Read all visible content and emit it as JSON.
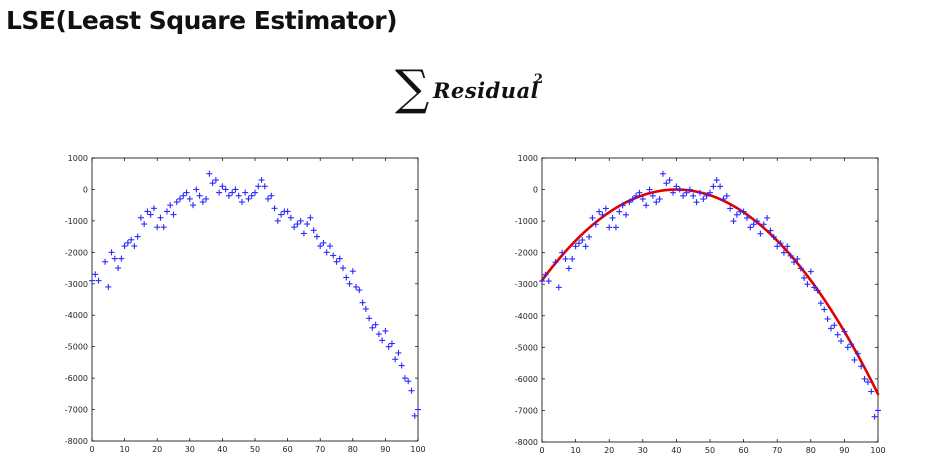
{
  "title": "LSE(Least Square Estimator)",
  "formula": {
    "sigma": "∑",
    "word": "Residual",
    "exponent": "2"
  },
  "colors": {
    "points": "#2a2aff",
    "fit_line": "#e00000",
    "axes": "#000000"
  },
  "chart_data": [
    {
      "type": "scatter",
      "title": "",
      "xlabel": "",
      "ylabel": "",
      "xlim": [
        0,
        100
      ],
      "ylim": [
        -8000,
        1000
      ],
      "xticks": [
        "0",
        "10",
        "20",
        "30",
        "40",
        "50",
        "60",
        "70",
        "80",
        "90",
        "100"
      ],
      "yticks": [
        "1000",
        "0",
        "-1000",
        "-2000",
        "-3000",
        "-4000",
        "-5000",
        "-6000",
        "-7000",
        "-8000"
      ],
      "grid": false,
      "marker": "+",
      "series": [
        {
          "x": [
            0,
            1,
            2,
            4,
            5,
            6,
            7,
            8,
            9,
            10,
            11,
            12,
            13,
            14,
            15,
            16,
            17,
            18,
            19,
            20,
            21,
            22,
            23,
            24,
            25,
            26,
            27,
            28,
            29,
            30,
            31,
            32,
            33,
            34,
            35,
            36,
            37,
            38,
            39,
            40,
            41,
            42,
            43,
            44,
            45,
            46,
            47,
            48,
            49,
            50,
            51,
            52,
            53,
            54,
            55,
            56,
            57,
            58,
            59,
            60,
            61,
            62,
            63,
            64,
            65,
            66,
            67,
            68,
            69,
            70,
            71,
            72,
            73,
            74,
            75,
            76,
            77,
            78,
            79,
            80,
            81,
            82,
            83,
            84,
            85,
            86,
            87,
            88,
            89,
            90,
            91,
            92,
            93,
            94,
            95,
            96,
            97,
            98,
            99,
            100
          ],
          "y": [
            -2900,
            -2700,
            -2900,
            -2300,
            -3100,
            -2000,
            -2200,
            -2500,
            -2200,
            -1800,
            -1700,
            -1600,
            -1800,
            -1500,
            -900,
            -1100,
            -700,
            -800,
            -600,
            -1200,
            -900,
            -1200,
            -700,
            -500,
            -800,
            -400,
            -300,
            -200,
            -100,
            -300,
            -500,
            0,
            -200,
            -400,
            -300,
            500,
            200,
            300,
            -100,
            100,
            0,
            -200,
            -100,
            0,
            -200,
            -400,
            -100,
            -300,
            -200,
            -100,
            100,
            300,
            100,
            -300,
            -200,
            -600,
            -1000,
            -800,
            -700,
            -700,
            -900,
            -1200,
            -1100,
            -1000,
            -1400,
            -1100,
            -900,
            -1300,
            -1500,
            -1800,
            -1700,
            -2000,
            -1800,
            -2100,
            -2300,
            -2200,
            -2500,
            -2800,
            -3000,
            -2600,
            -3100,
            -3200,
            -3600,
            -3800,
            -4100,
            -4400,
            -4300,
            -4600,
            -4800,
            -4500,
            -5000,
            -4900,
            -5400,
            -5200,
            -5600,
            -6000,
            -6100,
            -6400,
            -7200,
            -7000
          ]
        }
      ]
    },
    {
      "type": "scatter",
      "title": "",
      "xlabel": "",
      "ylabel": "",
      "xlim": [
        0,
        100
      ],
      "ylim": [
        -8000,
        1000
      ],
      "xticks": [
        "0",
        "10",
        "20",
        "30",
        "40",
        "50",
        "60",
        "70",
        "80",
        "90",
        "100"
      ],
      "yticks": [
        "1000",
        "0",
        "-1000",
        "-2000",
        "-3000",
        "-4000",
        "-5000",
        "-6000",
        "-7000",
        "-8000"
      ],
      "grid": false,
      "marker": "+",
      "series": [
        {
          "x": [
            0,
            1,
            2,
            4,
            5,
            6,
            7,
            8,
            9,
            10,
            11,
            12,
            13,
            14,
            15,
            16,
            17,
            18,
            19,
            20,
            21,
            22,
            23,
            24,
            25,
            26,
            27,
            28,
            29,
            30,
            31,
            32,
            33,
            34,
            35,
            36,
            37,
            38,
            39,
            40,
            41,
            42,
            43,
            44,
            45,
            46,
            47,
            48,
            49,
            50,
            51,
            52,
            53,
            54,
            55,
            56,
            57,
            58,
            59,
            60,
            61,
            62,
            63,
            64,
            65,
            66,
            67,
            68,
            69,
            70,
            71,
            72,
            73,
            74,
            75,
            76,
            77,
            78,
            79,
            80,
            81,
            82,
            83,
            84,
            85,
            86,
            87,
            88,
            89,
            90,
            91,
            92,
            93,
            94,
            95,
            96,
            97,
            98,
            99,
            100
          ],
          "y": [
            -2900,
            -2700,
            -2900,
            -2300,
            -3100,
            -2000,
            -2200,
            -2500,
            -2200,
            -1800,
            -1700,
            -1600,
            -1800,
            -1500,
            -900,
            -1100,
            -700,
            -800,
            -600,
            -1200,
            -900,
            -1200,
            -700,
            -500,
            -800,
            -400,
            -300,
            -200,
            -100,
            -300,
            -500,
            0,
            -200,
            -400,
            -300,
            500,
            200,
            300,
            -100,
            100,
            0,
            -200,
            -100,
            0,
            -200,
            -400,
            -100,
            -300,
            -200,
            -100,
            100,
            300,
            100,
            -300,
            -200,
            -600,
            -1000,
            -800,
            -700,
            -700,
            -900,
            -1200,
            -1100,
            -1000,
            -1400,
            -1100,
            -900,
            -1300,
            -1500,
            -1800,
            -1700,
            -2000,
            -1800,
            -2100,
            -2300,
            -2200,
            -2500,
            -2800,
            -3000,
            -2600,
            -3100,
            -3200,
            -3600,
            -3800,
            -4100,
            -4400,
            -4300,
            -4600,
            -4800,
            -4500,
            -5000,
            -4900,
            -5400,
            -5200,
            -5600,
            -6000,
            -6100,
            -6400,
            -7200,
            -7000
          ]
        }
      ],
      "fit": {
        "type": "quadratic",
        "vertex_x": 40,
        "vertex_y": 0,
        "a": -1.8,
        "x_range": [
          0,
          100
        ]
      }
    }
  ]
}
